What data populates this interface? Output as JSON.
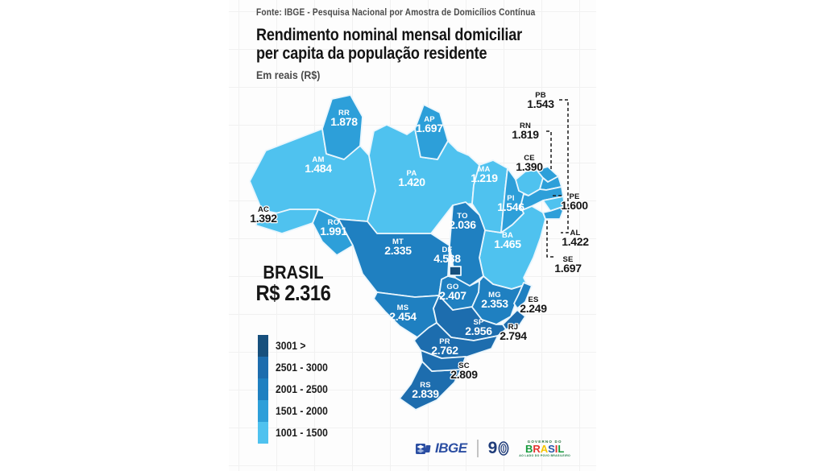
{
  "poster": {
    "source": "Fonte: IBGE - Pesquisa Nacional por Amostra de Domicílios Contínua",
    "title_line1": "Rendimento nominal mensal domiciliar",
    "title_line2": "per capita da população residente",
    "subtitle": "Em reais (R$)"
  },
  "brasil": {
    "label": "BRASIL",
    "value": "R$ 2.316"
  },
  "legend": {
    "items": [
      {
        "key": "3001+",
        "label": "3001 >",
        "color": "#17507D"
      },
      {
        "key": "2501-3000",
        "label": "2501 - 3000",
        "color": "#1D6DAE"
      },
      {
        "key": "2001-2500",
        "label": "2001 - 2500",
        "color": "#1F80C1"
      },
      {
        "key": "1501-2000",
        "label": "1501 - 2000",
        "color": "#2D9FD9"
      },
      {
        "key": "1001-1500",
        "label": "1001 - 1500",
        "color": "#4FC2EF"
      }
    ]
  },
  "states": [
    {
      "abbr": "RR",
      "value": "1.878",
      "range": "1501-2000"
    },
    {
      "abbr": "AP",
      "value": "1.697",
      "range": "1501-2000"
    },
    {
      "abbr": "AM",
      "value": "1.484",
      "range": "1001-1500"
    },
    {
      "abbr": "PA",
      "value": "1.420",
      "range": "1001-1500"
    },
    {
      "abbr": "MA",
      "value": "1.219",
      "range": "1001-1500"
    },
    {
      "abbr": "PI",
      "value": "1.546",
      "range": "1501-2000"
    },
    {
      "abbr": "CE",
      "value": "1.390",
      "range": "1001-1500"
    },
    {
      "abbr": "RN",
      "value": "1.819",
      "range": "1501-2000"
    },
    {
      "abbr": "PB",
      "value": "1.543",
      "range": "1501-2000"
    },
    {
      "abbr": "PE",
      "value": "1.600",
      "range": "1501-2000"
    },
    {
      "abbr": "AL",
      "value": "1.422",
      "range": "1001-1500"
    },
    {
      "abbr": "SE",
      "value": "1.697",
      "range": "1501-2000"
    },
    {
      "abbr": "BA",
      "value": "1.465",
      "range": "1001-1500"
    },
    {
      "abbr": "AC",
      "value": "1.392",
      "range": "1001-1500"
    },
    {
      "abbr": "RO",
      "value": "1.991",
      "range": "1501-2000"
    },
    {
      "abbr": "TO",
      "value": "2.036",
      "range": "2001-2500"
    },
    {
      "abbr": "MT",
      "value": "2.335",
      "range": "2001-2500"
    },
    {
      "abbr": "DF",
      "value": "4.538",
      "range": "3001+"
    },
    {
      "abbr": "GO",
      "value": "2.407",
      "range": "2001-2500"
    },
    {
      "abbr": "MG",
      "value": "2.353",
      "range": "2001-2500"
    },
    {
      "abbr": "ES",
      "value": "2.249",
      "range": "2001-2500"
    },
    {
      "abbr": "MS",
      "value": "2.454",
      "range": "2001-2500"
    },
    {
      "abbr": "SP",
      "value": "2.956",
      "range": "2501-3000"
    },
    {
      "abbr": "RJ",
      "value": "2.794",
      "range": "2501-3000"
    },
    {
      "abbr": "PR",
      "value": "2.762",
      "range": "2501-3000"
    },
    {
      "abbr": "SC",
      "value": "2.809",
      "range": "2501-3000"
    },
    {
      "abbr": "RS",
      "value": "2.839",
      "range": "2501-3000"
    }
  ],
  "footer": {
    "ibge_label": "IBGE",
    "anniversary": "9",
    "governo_line1": "GOVERNO DO",
    "governo_line2": "BRASIL",
    "governo_tagline": "AO LADO DO POVO BRASILEIRO"
  },
  "chart_data": {
    "type": "choropleth",
    "title": "Rendimento nominal mensal domiciliar per capita da população residente",
    "subtitle": "Em reais (R$)",
    "source": "IBGE - Pesquisa Nacional por Amostra de Domicílios Contínua",
    "national": {
      "name": "Brasil",
      "value": 2316
    },
    "legend_position": "bottom-left",
    "bins": [
      {
        "label": "3001 >",
        "color": "#17507D"
      },
      {
        "label": "2501 - 3000",
        "color": "#1D6DAE"
      },
      {
        "label": "2001 - 2500",
        "color": "#1F80C1"
      },
      {
        "label": "1501 - 2000",
        "color": "#2D9FD9"
      },
      {
        "label": "1001 - 1500",
        "color": "#4FC2EF"
      }
    ],
    "regions": [
      {
        "abbr": "RR",
        "value": 1878
      },
      {
        "abbr": "AP",
        "value": 1697
      },
      {
        "abbr": "AM",
        "value": 1484
      },
      {
        "abbr": "PA",
        "value": 1420
      },
      {
        "abbr": "MA",
        "value": 1219
      },
      {
        "abbr": "PI",
        "value": 1546
      },
      {
        "abbr": "CE",
        "value": 1390
      },
      {
        "abbr": "RN",
        "value": 1819
      },
      {
        "abbr": "PB",
        "value": 1543
      },
      {
        "abbr": "PE",
        "value": 1600
      },
      {
        "abbr": "AL",
        "value": 1422
      },
      {
        "abbr": "SE",
        "value": 1697
      },
      {
        "abbr": "BA",
        "value": 1465
      },
      {
        "abbr": "AC",
        "value": 1392
      },
      {
        "abbr": "RO",
        "value": 1991
      },
      {
        "abbr": "TO",
        "value": 2036
      },
      {
        "abbr": "MT",
        "value": 2335
      },
      {
        "abbr": "DF",
        "value": 4538
      },
      {
        "abbr": "GO",
        "value": 2407
      },
      {
        "abbr": "MG",
        "value": 2353
      },
      {
        "abbr": "ES",
        "value": 2249
      },
      {
        "abbr": "MS",
        "value": 2454
      },
      {
        "abbr": "SP",
        "value": 2956
      },
      {
        "abbr": "RJ",
        "value": 2794
      },
      {
        "abbr": "PR",
        "value": 2762
      },
      {
        "abbr": "SC",
        "value": 2809
      },
      {
        "abbr": "RS",
        "value": 2839
      }
    ]
  }
}
